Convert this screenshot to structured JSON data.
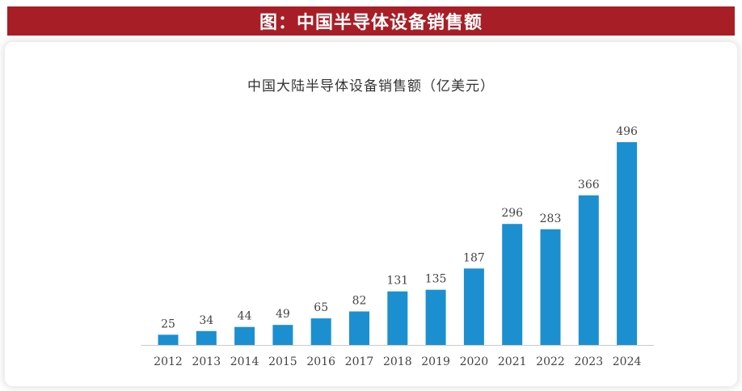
{
  "banner": {
    "title": "图：中国半导体设备销售额"
  },
  "colors": {
    "banner": "#a81e26",
    "bar": "#1c8fd0"
  },
  "chart_data": {
    "type": "bar",
    "title": "中国大陆半导体设备销售额（亿美元）",
    "categories": [
      "2012",
      "2013",
      "2014",
      "2015",
      "2016",
      "2017",
      "2018",
      "2019",
      "2020",
      "2021",
      "2022",
      "2023",
      "2024"
    ],
    "values": [
      25,
      34,
      44,
      49,
      65,
      82,
      131,
      135,
      187,
      296,
      283,
      366,
      496
    ],
    "xlabel": "",
    "ylabel": "",
    "ylim": [
      0,
      500
    ],
    "grid": false,
    "legend": "none"
  }
}
